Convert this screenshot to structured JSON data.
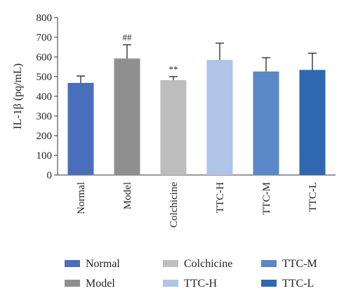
{
  "chart_data": {
    "type": "bar",
    "ylabel": "IL-1β (pq/mL)",
    "xlabel": "",
    "ylim": [
      0,
      800
    ],
    "yticks": [
      0,
      100,
      200,
      300,
      400,
      500,
      600,
      700,
      800
    ],
    "grid": false,
    "legend_position": "bottom",
    "categories": [
      "Normal",
      "Model",
      "Colchicine",
      "TTC-H",
      "TTC-M",
      "TTC-L"
    ],
    "values": [
      468,
      592,
      482,
      585,
      526,
      534
    ],
    "errors": [
      35,
      70,
      18,
      85,
      70,
      85
    ],
    "annotations": [
      "",
      "##",
      "",
      "",
      "",
      ""
    ],
    "annotations_b": [
      "",
      "",
      "**",
      "",
      "",
      ""
    ],
    "colors": [
      "#4a6fba",
      "#8f8f8f",
      "#bdbdbd",
      "#afc4e6",
      "#5a88c6",
      "#2f67b0"
    ],
    "legend": [
      {
        "label": "Normal",
        "color": "#4a6fba"
      },
      {
        "label": "Model",
        "color": "#8f8f8f"
      },
      {
        "label": "Colchicine",
        "color": "#bdbdbd"
      },
      {
        "label": "TTC-H",
        "color": "#afc4e6"
      },
      {
        "label": "TTC-M",
        "color": "#5a88c6"
      },
      {
        "label": "TTC-L",
        "color": "#2f67b0"
      }
    ]
  }
}
